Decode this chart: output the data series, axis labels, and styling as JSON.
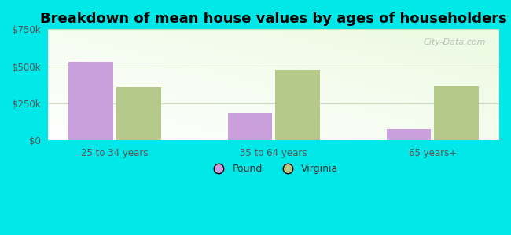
{
  "categories": [
    "25 to 34 years",
    "35 to 64 years",
    "65 years+"
  ],
  "pound_values": [
    530000,
    185000,
    75000
  ],
  "virginia_values": [
    360000,
    480000,
    365000
  ],
  "pound_color": "#c9a0dc",
  "virginia_color": "#b5c98a",
  "title": "Breakdown of mean house values by ages of householders",
  "title_fontsize": 13,
  "ylim": [
    0,
    750000
  ],
  "yticks": [
    0,
    250000,
    500000,
    750000
  ],
  "ytick_labels": [
    "$0",
    "$250k",
    "$500k",
    "$750k"
  ],
  "legend_labels": [
    "Pound",
    "Virginia"
  ],
  "background_outer": "#00e8e8",
  "bar_width": 0.28,
  "watermark": "City-Data.com",
  "tick_color": "#555555",
  "grid_color": "#d0ddc0"
}
